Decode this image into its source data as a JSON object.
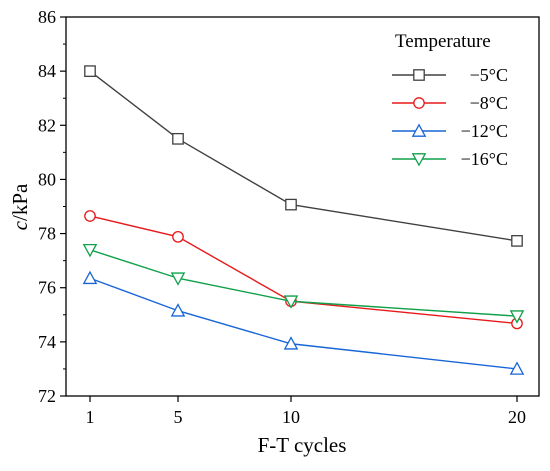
{
  "chart_data": {
    "type": "line",
    "x": [
      1,
      5,
      10,
      20
    ],
    "xticks": [
      "1",
      "5",
      "10",
      "20"
    ],
    "yticks": [
      "72",
      "74",
      "76",
      "78",
      "80",
      "82",
      "84",
      "86"
    ],
    "xlabel": "F-T cycles",
    "ylabel": {
      "italic": "c",
      "rest": "/kPa"
    },
    "ylim": [
      72,
      86
    ],
    "grid": false,
    "legend": {
      "title": "Temperature",
      "position": "top-right"
    },
    "series": [
      {
        "name": "−5°C",
        "marker": "square",
        "color": "#404040",
        "values": [
          84.0,
          81.5,
          79.07,
          77.73
        ]
      },
      {
        "name": "−8°C",
        "marker": "circle",
        "color": "#e8191a",
        "values": [
          78.65,
          77.88,
          75.5,
          74.68
        ]
      },
      {
        "name": "−12°C",
        "marker": "triangle-up",
        "color": "#1866d6",
        "values": [
          76.35,
          75.15,
          73.93,
          73.0
        ]
      },
      {
        "name": "−16°C",
        "marker": "triangle-down",
        "color": "#10a04a",
        "values": [
          77.4,
          76.35,
          75.5,
          74.95
        ]
      }
    ]
  }
}
